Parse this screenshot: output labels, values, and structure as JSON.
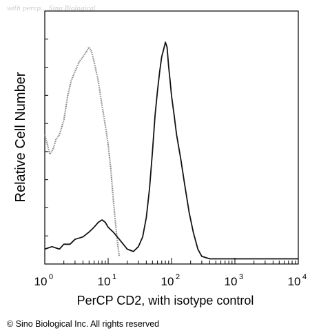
{
  "watermark": "with percp... Sino Biological",
  "copyright": "© Sino Biological Inc. All rights reserved",
  "chart_data": {
    "type": "line",
    "title": "",
    "xlabel": "PerCP CD2, with isotype control",
    "ylabel": "Relative Cell Number",
    "xscale": "log",
    "xlim": [
      1,
      10000
    ],
    "ylim": [
      0,
      100
    ],
    "x_tick_labels": [
      {
        "value": 1,
        "base": "10",
        "exp": "0"
      },
      {
        "value": 10,
        "base": "10",
        "exp": "1"
      },
      {
        "value": 100,
        "base": "10",
        "exp": "2"
      },
      {
        "value": 1000,
        "base": "10",
        "exp": "3"
      },
      {
        "value": 10000,
        "base": "10",
        "exp": "4"
      }
    ],
    "series": [
      {
        "role": "isotype control",
        "color": "#8a8a8a",
        "x": [
          1,
          1.1,
          1.2,
          1.35,
          1.5,
          1.7,
          2,
          2.3,
          2.6,
          3,
          3.5,
          4,
          4.5,
          5,
          5.5,
          6,
          7,
          8,
          9,
          10,
          11,
          12,
          13,
          14,
          15
        ],
        "y": [
          52,
          48,
          44,
          46,
          50,
          52,
          58,
          68,
          74,
          78,
          82,
          84,
          86,
          88,
          86,
          82,
          74,
          64,
          56,
          48,
          38,
          26,
          16,
          8,
          2
        ]
      },
      {
        "role": "PerCP CD2",
        "color": "#111111",
        "x": [
          1,
          1.3,
          1.7,
          2,
          2.5,
          3,
          4,
          5,
          6,
          7,
          8,
          9,
          10,
          12,
          15,
          20,
          25,
          30,
          35,
          40,
          45,
          50,
          55,
          60,
          65,
          70,
          75,
          80,
          85,
          90,
          95,
          100,
          110,
          120,
          140,
          160,
          190,
          220,
          260,
          300,
          400,
          1000,
          10000
        ],
        "y": [
          5,
          6,
          5,
          7,
          7,
          9,
          10,
          12,
          14,
          16,
          17,
          16,
          14,
          12,
          9,
          5,
          4,
          6,
          10,
          18,
          30,
          45,
          60,
          70,
          78,
          84,
          87,
          90,
          88,
          80,
          74,
          68,
          60,
          52,
          42,
          32,
          20,
          12,
          5,
          2,
          1,
          1,
          1
        ]
      }
    ],
    "grid": false,
    "legend": "none"
  }
}
